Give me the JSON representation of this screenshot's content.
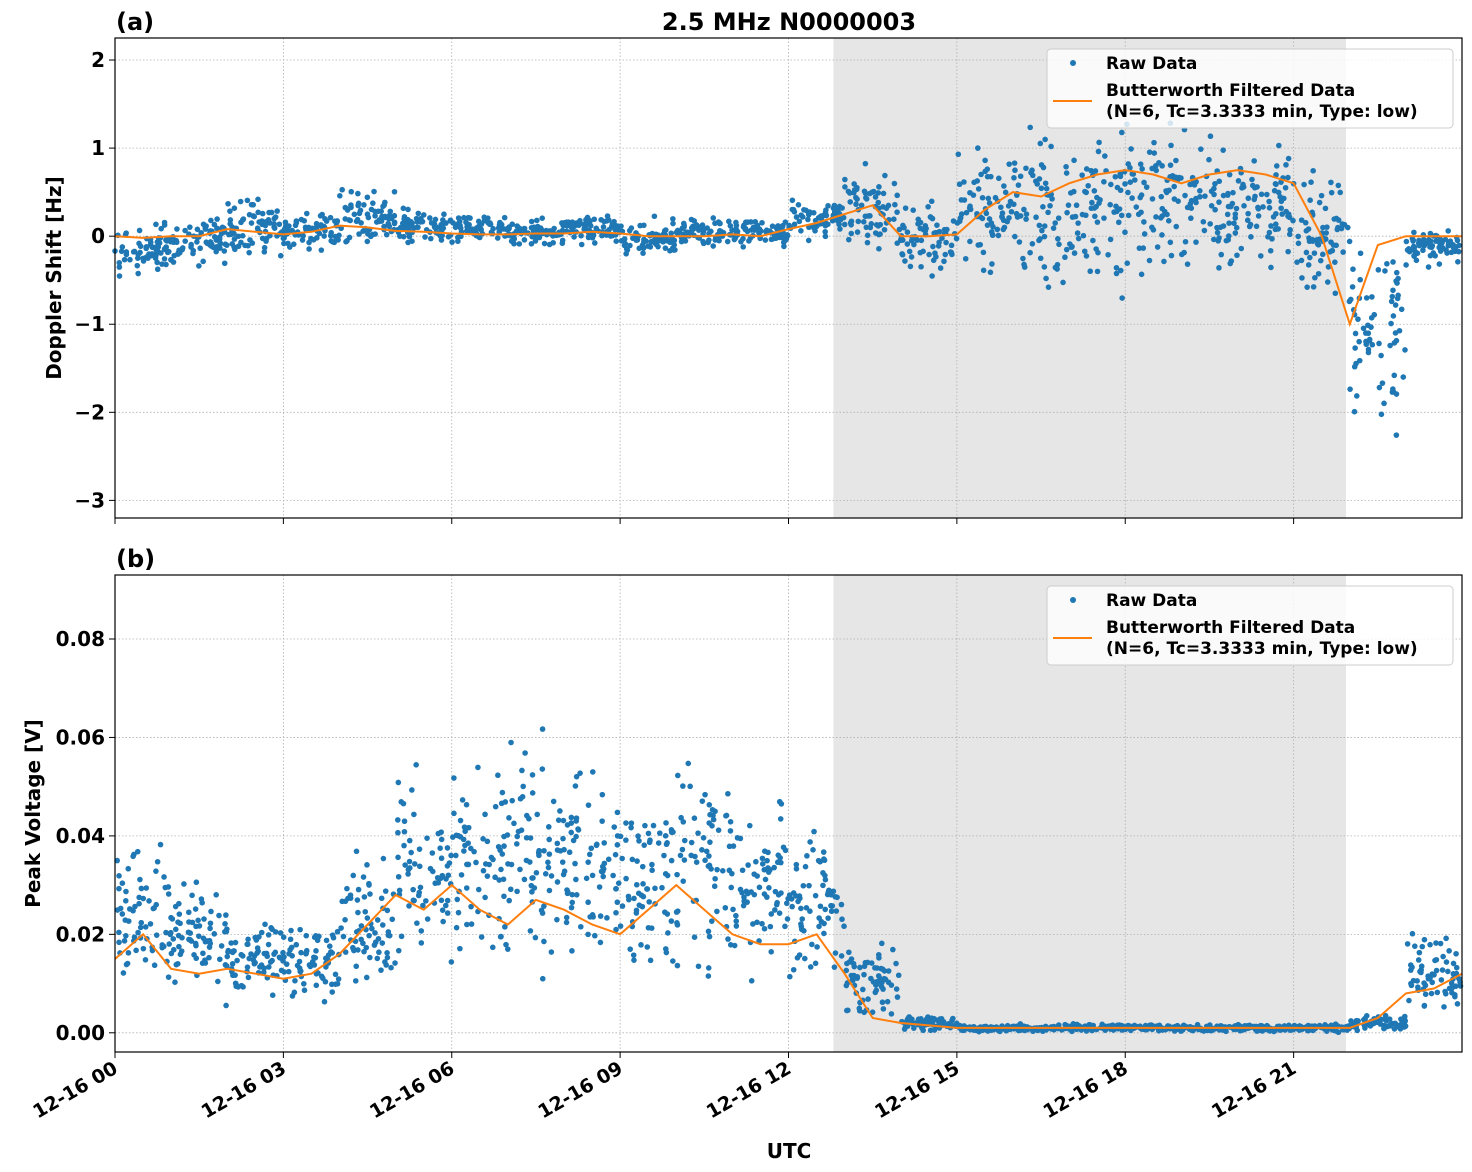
{
  "title": "2.5 MHz N0000003",
  "chart_data": [
    {
      "panel_label": "(a)",
      "type": "scatter",
      "ylabel": "Doppler Shift [Hz]",
      "ylim": [
        -3.2,
        2.25
      ],
      "yticks": [
        2,
        1,
        0,
        -1,
        -2,
        -3
      ],
      "ytick_labels": [
        "2",
        "1",
        "0",
        "−1",
        "−2",
        "−3"
      ],
      "grid": true,
      "legend_position": "top-right",
      "shaded_interval_utc": [
        "12-16 12:48",
        "12-16 21:56"
      ],
      "series": [
        {
          "name": "Raw Data",
          "style": "points",
          "color": "#1f77b4",
          "hourly_range": {
            "hours": [
              0,
              1,
              2,
              3,
              4,
              5,
              6,
              7,
              8,
              9,
              10,
              11,
              12,
              13,
              14,
              15,
              16,
              17,
              18,
              19,
              20,
              21,
              22,
              23
            ],
            "low": [
              -0.5,
              -0.4,
              -0.3,
              -0.2,
              -0.2,
              -0.15,
              -0.15,
              -0.15,
              -0.15,
              -0.3,
              -0.15,
              -0.15,
              -0.1,
              -0.3,
              -0.6,
              -0.7,
              -0.9,
              -0.8,
              -0.7,
              -0.7,
              -0.6,
              -1.0,
              -2.5,
              -0.4
            ],
            "high": [
              0.2,
              0.3,
              0.5,
              0.3,
              0.6,
              0.35,
              0.3,
              0.25,
              0.3,
              0.25,
              0.25,
              0.25,
              0.5,
              0.9,
              0.5,
              1.2,
              1.4,
              1.5,
              1.5,
              1.4,
              1.4,
              1.0,
              0.5,
              0.15
            ]
          }
        },
        {
          "name": "Butterworth Filtered Data\n(N=6, Tc=3.3333 min, Type: low)",
          "style": "line",
          "color": "#ff7f0e",
          "hours": [
            0,
            0.5,
            1,
            1.5,
            2,
            2.5,
            3,
            3.5,
            4,
            4.5,
            5,
            5.5,
            6,
            6.5,
            7,
            7.5,
            8,
            8.5,
            9,
            9.5,
            10,
            10.5,
            11,
            11.5,
            12,
            12.5,
            13,
            13.5,
            14,
            14.5,
            15,
            15.5,
            16,
            16.5,
            17,
            17.5,
            18,
            18.5,
            19,
            19.5,
            20,
            20.5,
            21,
            21.5,
            22,
            22.5,
            23,
            23.5,
            24
          ],
          "values": [
            0,
            -0.02,
            0,
            0,
            0.08,
            0.05,
            0.02,
            0.05,
            0.12,
            0.1,
            0.06,
            0.05,
            0.03,
            0.02,
            0.02,
            0.03,
            0.03,
            0.05,
            0.03,
            0,
            0,
            0,
            0.02,
            0,
            0.08,
            0.15,
            0.25,
            0.35,
            0,
            0,
            0.02,
            0.3,
            0.5,
            0.45,
            0.6,
            0.7,
            0.75,
            0.7,
            0.6,
            0.7,
            0.75,
            0.7,
            0.6,
            0,
            -1.0,
            -0.1,
            0,
            0,
            0
          ]
        }
      ]
    },
    {
      "panel_label": "(b)",
      "type": "scatter",
      "xlabel": "UTC",
      "ylabel": "Peak Voltage [V]",
      "ylim": [
        -0.0039,
        0.093
      ],
      "yticks": [
        0.08,
        0.06,
        0.04,
        0.02,
        0.0
      ],
      "ytick_labels": [
        "0.08",
        "0.06",
        "0.04",
        "0.02",
        "0.00"
      ],
      "grid": true,
      "legend_position": "top-right",
      "shaded_interval_utc": [
        "12-16 12:48",
        "12-16 21:56"
      ],
      "series": [
        {
          "name": "Raw Data",
          "style": "points",
          "color": "#1f77b4",
          "hourly_range": {
            "hours": [
              0,
              1,
              2,
              3,
              4,
              5,
              6,
              7,
              8,
              9,
              10,
              11,
              12,
              13,
              14,
              15,
              16,
              17,
              18,
              19,
              20,
              21,
              22,
              23
            ],
            "low": [
              0.004,
              0.004,
              0.004,
              0.004,
              0.006,
              0.008,
              0.008,
              0.006,
              0.006,
              0.006,
              0.006,
              0.006,
              0.006,
              0.001,
              0,
              0,
              0,
              0,
              0,
              0,
              0,
              0,
              0,
              0.002
            ],
            "high": [
              0.045,
              0.035,
              0.025,
              0.025,
              0.04,
              0.06,
              0.06,
              0.065,
              0.06,
              0.055,
              0.06,
              0.055,
              0.045,
              0.02,
              0.004,
              0.002,
              0.002,
              0.002,
              0.002,
              0.002,
              0.002,
              0.002,
              0.004,
              0.022
            ]
          }
        },
        {
          "name": "Butterworth Filtered Data\n(N=6, Tc=3.3333 min, Type: low)",
          "style": "line",
          "color": "#ff7f0e",
          "hours": [
            0,
            0.5,
            1,
            1.5,
            2,
            2.5,
            3,
            3.5,
            4,
            4.5,
            5,
            5.5,
            6,
            6.5,
            7,
            7.5,
            8,
            8.5,
            9,
            9.5,
            10,
            10.5,
            11,
            11.5,
            12,
            12.5,
            13,
            13.5,
            14,
            14.5,
            15,
            15.5,
            16,
            16.5,
            17,
            17.5,
            18,
            18.5,
            19,
            19.5,
            20,
            20.5,
            21,
            21.5,
            22,
            22.5,
            23,
            23.5,
            24
          ],
          "values": [
            0.015,
            0.02,
            0.013,
            0.012,
            0.013,
            0.012,
            0.011,
            0.012,
            0.016,
            0.022,
            0.028,
            0.025,
            0.03,
            0.025,
            0.022,
            0.027,
            0.025,
            0.022,
            0.02,
            0.025,
            0.03,
            0.025,
            0.02,
            0.018,
            0.018,
            0.02,
            0.012,
            0.003,
            0.002,
            0.0015,
            0.001,
            0.001,
            0.001,
            0.001,
            0.001,
            0.001,
            0.001,
            0.001,
            0.001,
            0.001,
            0.001,
            0.001,
            0.001,
            0.001,
            0.001,
            0.003,
            0.008,
            0.009,
            0.012
          ]
        }
      ]
    }
  ],
  "x_axis": {
    "range_hours": [
      0,
      24
    ],
    "tick_hours": [
      0,
      3,
      6,
      9,
      12,
      15,
      18,
      21
    ],
    "tick_labels": [
      "12-16 00",
      "12-16 03",
      "12-16 06",
      "12-16 09",
      "12-16 12",
      "12-16 15",
      "12-16 18",
      "12-16 21"
    ]
  },
  "legend": {
    "raw_label": "Raw Data",
    "filtered_line1": "Butterworth Filtered Data",
    "filtered_line2": "(N=6, Tc=3.3333 min, Type: low)"
  },
  "colors": {
    "raw": "#1f77b4",
    "filtered": "#ff7f0e",
    "shade": "#e6e6e6"
  }
}
